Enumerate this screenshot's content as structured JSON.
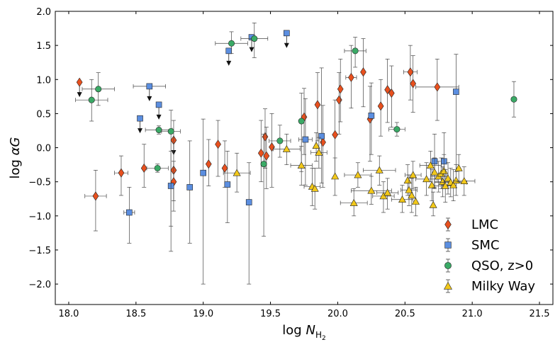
{
  "chart_data": {
    "type": "scatter",
    "title": "",
    "xlabel": "log N_H2",
    "ylabel": "log αG",
    "xlim": [
      17.9,
      21.6
    ],
    "ylim": [
      -2.3,
      2.0
    ],
    "xticks": [
      18.0,
      18.5,
      19.0,
      19.5,
      20.0,
      20.5,
      21.0,
      21.5
    ],
    "xtick_labels": [
      "18.0",
      "18.5",
      "19.0",
      "19.5",
      "20.0",
      "20.5",
      "21.0",
      "21.5"
    ],
    "yticks": [
      -2.0,
      -1.5,
      -1.0,
      -0.5,
      0.0,
      0.5,
      1.0,
      1.5,
      2.0
    ],
    "ytick_labels": [
      "−2.0",
      "−1.5",
      "−1.0",
      "−0.5",
      "0.0",
      "0.5",
      "1.0",
      "1.5",
      "2.0"
    ],
    "legend_position": "bottom-right",
    "series": [
      {
        "name": "LMC",
        "marker": "diamond",
        "color": "#e8501e",
        "points": [
          {
            "x": 18.08,
            "y": 0.96,
            "ylo": 0.9,
            "yhi": 1.02,
            "upper": true
          },
          {
            "x": 18.2,
            "y": -0.71,
            "ylo": -1.22,
            "yhi": -0.33,
            "xerr": 0.08
          },
          {
            "x": 18.39,
            "y": -0.37,
            "ylo": -0.7,
            "yhi": -0.12,
            "xerr": 0.05
          },
          {
            "x": 18.56,
            "y": -0.3,
            "ylo": -0.58,
            "yhi": 0.05
          },
          {
            "x": 18.78,
            "y": 0.11,
            "ylo": 0.08,
            "yhi": 0.14,
            "upper": true
          },
          {
            "x": 18.78,
            "y": -0.33,
            "ylo": -0.93,
            "yhi": 0.4
          },
          {
            "x": 18.78,
            "y": -0.5,
            "ylo": -0.78,
            "yhi": -0.2
          },
          {
            "x": 19.04,
            "y": -0.24,
            "ylo": -0.56,
            "yhi": 0.12
          },
          {
            "x": 19.11,
            "y": 0.05,
            "ylo": -0.42,
            "yhi": 0.4
          },
          {
            "x": 19.16,
            "y": -0.3,
            "ylo": -0.58,
            "yhi": 0.1
          },
          {
            "x": 19.43,
            "y": -0.08,
            "ylo": -0.5,
            "yhi": 0.4
          },
          {
            "x": 19.46,
            "y": 0.16,
            "ylo": -0.3,
            "yhi": 0.57
          },
          {
            "x": 19.47,
            "y": -0.12,
            "ylo": -0.6,
            "yhi": 0.3
          },
          {
            "x": 19.51,
            "y": 0.01,
            "ylo": -0.58,
            "yhi": 0.5
          },
          {
            "x": 19.75,
            "y": 0.45,
            "ylo": -0.1,
            "yhi": 0.87
          },
          {
            "x": 19.85,
            "y": 0.63,
            "ylo": 0.1,
            "yhi": 1.1
          },
          {
            "x": 19.89,
            "y": 0.08,
            "ylo": -0.58,
            "yhi": 0.62
          },
          {
            "x": 19.98,
            "y": 0.19,
            "ylo": -0.42,
            "yhi": 0.7
          },
          {
            "x": 20.01,
            "y": 0.7,
            "ylo": 0.2,
            "yhi": 1.1
          },
          {
            "x": 20.02,
            "y": 0.86,
            "ylo": 0.38,
            "yhi": 1.3
          },
          {
            "x": 20.1,
            "y": 1.03,
            "ylo": 0.58,
            "yhi": 1.5,
            "xerr": 0.04
          },
          {
            "x": 20.19,
            "y": 1.11,
            "ylo": 0.6,
            "yhi": 1.6
          },
          {
            "x": 20.24,
            "y": 0.42,
            "ylo": -0.2,
            "yhi": 0.9
          },
          {
            "x": 20.32,
            "y": 0.61,
            "ylo": 0.17,
            "yhi": 1.0
          },
          {
            "x": 20.37,
            "y": 0.85,
            "ylo": 0.37,
            "yhi": 1.3
          },
          {
            "x": 20.4,
            "y": 0.8,
            "ylo": 0.3,
            "yhi": 1.2
          },
          {
            "x": 20.54,
            "y": 1.11,
            "ylo": 0.7,
            "yhi": 1.5,
            "xerr": 0.05
          },
          {
            "x": 20.56,
            "y": 0.94,
            "ylo": 0.52,
            "yhi": 1.35
          },
          {
            "x": 20.74,
            "y": 0.89,
            "ylo": 0.4,
            "yhi": 1.3,
            "xerr": 0.16
          }
        ]
      },
      {
        "name": "SMC",
        "marker": "square",
        "color": "#5b8ee0",
        "points": [
          {
            "x": 18.45,
            "y": -0.95,
            "ylo": -1.4,
            "yhi": -0.58,
            "xerr": 0.04
          },
          {
            "x": 18.53,
            "y": 0.43,
            "ylo": 0.38,
            "yhi": 0.48,
            "upper": true
          },
          {
            "x": 18.6,
            "y": 0.9,
            "ylo": 0.85,
            "yhi": 0.95,
            "upper": true,
            "xerr": 0.12
          },
          {
            "x": 18.67,
            "y": 0.63,
            "ylo": 0.58,
            "yhi": 0.68,
            "upper": true
          },
          {
            "x": 18.76,
            "y": -0.56,
            "ylo": -1.15,
            "yhi": -0.05
          },
          {
            "x": 18.9,
            "y": -0.58,
            "ylo": -1.4,
            "yhi": 0.1
          },
          {
            "x": 19.0,
            "y": -0.37,
            "ylo": -2.0,
            "yhi": 0.42
          },
          {
            "x": 19.18,
            "y": -0.54,
            "ylo": -1.1,
            "yhi": -0.05
          },
          {
            "x": 19.19,
            "y": 1.42,
            "ylo": 1.38,
            "yhi": 1.46,
            "upper": true
          },
          {
            "x": 19.34,
            "y": -0.8,
            "ylo": -2.0,
            "yhi": -0.22
          },
          {
            "x": 19.36,
            "y": 1.62,
            "ylo": 1.58,
            "yhi": 1.66,
            "upper": true
          },
          {
            "x": 19.62,
            "y": 1.68,
            "ylo": 1.64,
            "yhi": 1.72,
            "upper": true
          },
          {
            "x": 19.76,
            "y": 0.12,
            "ylo": -0.55,
            "yhi": 0.72,
            "xerr": 0.05
          },
          {
            "x": 19.88,
            "y": 0.17,
            "ylo": -0.52,
            "yhi": 1.17
          },
          {
            "x": 20.25,
            "y": 0.47,
            "ylo": -0.1,
            "yhi": 0.95
          },
          {
            "x": 20.72,
            "y": -0.2,
            "ylo": -0.6,
            "yhi": 0.2
          },
          {
            "x": 20.79,
            "y": -0.2,
            "ylo": -0.58,
            "yhi": 0.22
          },
          {
            "x": 20.88,
            "y": 0.82,
            "ylo": -0.35,
            "yhi": 1.37
          }
        ]
      },
      {
        "name": "QSO, z>0",
        "marker": "circle",
        "color": "#3aaa66",
        "points": [
          {
            "x": 18.17,
            "y": 0.7,
            "ylo": 0.39,
            "yhi": 1.0,
            "xerr": 0.12
          },
          {
            "x": 18.22,
            "y": 0.86,
            "ylo": 0.62,
            "yhi": 1.1,
            "xerr": 0.12
          },
          {
            "x": 18.66,
            "y": -0.3,
            "ylo": -0.36,
            "yhi": -0.24,
            "xerr": 0.08
          },
          {
            "x": 18.67,
            "y": 0.26,
            "ylo": 0.2,
            "yhi": 0.32,
            "xerr": 0.1
          },
          {
            "x": 18.76,
            "y": 0.24,
            "ylo": -1.52,
            "yhi": 0.55,
            "xerr": 0.07
          },
          {
            "x": 19.21,
            "y": 1.53,
            "ylo": 1.38,
            "yhi": 1.7,
            "xerr": 0.12
          },
          {
            "x": 19.38,
            "y": 1.6,
            "ylo": 1.32,
            "yhi": 1.83,
            "xerr": 0.1
          },
          {
            "x": 19.45,
            "y": -0.24,
            "ylo": -1.3,
            "yhi": 0.2
          },
          {
            "x": 19.57,
            "y": 0.1,
            "ylo": -0.14,
            "yhi": 0.33,
            "xerr": 0.08
          },
          {
            "x": 19.73,
            "y": 0.39,
            "ylo": -0.35,
            "yhi": 0.8
          },
          {
            "x": 20.13,
            "y": 1.42,
            "ylo": 1.18,
            "yhi": 1.62,
            "xerr": 0.08
          },
          {
            "x": 20.44,
            "y": 0.27,
            "ylo": 0.17,
            "yhi": 0.37,
            "xerr": 0.06
          },
          {
            "x": 21.31,
            "y": 0.71,
            "ylo": 0.45,
            "yhi": 0.97
          }
        ]
      },
      {
        "name": "Milky Way",
        "marker": "triangle",
        "color": "#f2c81a",
        "points": [
          {
            "x": 19.25,
            "y": -0.37,
            "ylo": -0.65,
            "yhi": -0.08,
            "xerr": 0.1
          },
          {
            "x": 19.62,
            "y": -0.02,
            "ylo": -0.25,
            "yhi": 0.2,
            "xerr": 0.1
          },
          {
            "x": 19.73,
            "y": -0.26,
            "ylo": -0.55,
            "yhi": 0.02,
            "xerr": 0.08
          },
          {
            "x": 19.81,
            "y": -0.57,
            "ylo": -0.85,
            "yhi": -0.3,
            "xerr": 0.06
          },
          {
            "x": 19.83,
            "y": -0.6,
            "ylo": -0.9,
            "yhi": -0.3
          },
          {
            "x": 19.84,
            "y": 0.03,
            "ylo": -0.2,
            "yhi": 0.22
          },
          {
            "x": 19.86,
            "y": -0.07,
            "ylo": -0.3,
            "yhi": 0.15,
            "xerr": 0.06
          },
          {
            "x": 19.98,
            "y": -0.42,
            "ylo": -0.7,
            "yhi": -0.15
          },
          {
            "x": 20.12,
            "y": -0.81,
            "ylo": -1.0,
            "yhi": -0.6,
            "xerr": 0.1
          },
          {
            "x": 20.15,
            "y": -0.4,
            "ylo": -0.58,
            "yhi": -0.22,
            "xerr": 0.1
          },
          {
            "x": 20.25,
            "y": -0.63,
            "ylo": -0.83,
            "yhi": -0.42,
            "xerr": 0.15
          },
          {
            "x": 20.31,
            "y": -0.33,
            "ylo": -0.55,
            "yhi": -0.12,
            "xerr": 0.12
          },
          {
            "x": 20.34,
            "y": -0.71,
            "ylo": -0.95,
            "yhi": -0.5,
            "xerr": 0.08
          },
          {
            "x": 20.37,
            "y": -0.66,
            "ylo": -0.9,
            "yhi": -0.45,
            "xerr": 0.08
          },
          {
            "x": 20.48,
            "y": -0.76,
            "ylo": -0.95,
            "yhi": -0.55,
            "xerr": 0.08
          },
          {
            "x": 20.52,
            "y": -0.48,
            "ylo": -0.7,
            "yhi": -0.25
          },
          {
            "x": 20.53,
            "y": -0.62,
            "ylo": -0.85,
            "yhi": -0.4,
            "xerr": 0.06
          },
          {
            "x": 20.55,
            "y": -0.7,
            "ylo": -0.95,
            "yhi": -0.45
          },
          {
            "x": 20.56,
            "y": -0.4,
            "ylo": -0.6,
            "yhi": -0.2,
            "xerr": 0.06
          },
          {
            "x": 20.58,
            "y": -0.79,
            "ylo": -1.0,
            "yhi": -0.58
          },
          {
            "x": 20.66,
            "y": -0.46,
            "ylo": -0.7,
            "yhi": -0.22,
            "xerr": 0.08
          },
          {
            "x": 20.69,
            "y": -0.26,
            "ylo": -0.5,
            "yhi": -0.05,
            "xerr": 0.08
          },
          {
            "x": 20.7,
            "y": -0.55,
            "ylo": -0.78,
            "yhi": -0.32
          },
          {
            "x": 20.71,
            "y": -0.84,
            "ylo": -1.0,
            "yhi": -0.65
          },
          {
            "x": 20.72,
            "y": -0.36,
            "ylo": -0.58,
            "yhi": -0.15
          },
          {
            "x": 20.75,
            "y": -0.42,
            "ylo": -0.65,
            "yhi": -0.2,
            "xerr": 0.06
          },
          {
            "x": 20.77,
            "y": -0.38,
            "ylo": -0.6,
            "yhi": -0.15
          },
          {
            "x": 20.78,
            "y": -0.5,
            "ylo": -0.72,
            "yhi": -0.28,
            "xerr": 0.06
          },
          {
            "x": 20.79,
            "y": -0.34,
            "ylo": -0.55,
            "yhi": -0.1
          },
          {
            "x": 20.8,
            "y": -0.56,
            "ylo": -0.8,
            "yhi": -0.32,
            "xerr": 0.08
          },
          {
            "x": 20.82,
            "y": -0.45,
            "ylo": -0.68,
            "yhi": -0.22
          },
          {
            "x": 20.84,
            "y": -0.51,
            "ylo": -0.72,
            "yhi": -0.3,
            "xerr": 0.12
          },
          {
            "x": 20.86,
            "y": -0.55,
            "ylo": -0.78,
            "yhi": -0.32
          },
          {
            "x": 20.88,
            "y": -0.48,
            "ylo": -0.7,
            "yhi": -0.25
          },
          {
            "x": 20.9,
            "y": -0.3,
            "ylo": -0.5,
            "yhi": -0.1
          },
          {
            "x": 20.94,
            "y": -0.49,
            "ylo": -0.7,
            "yhi": -0.28,
            "xerr": 0.08
          }
        ]
      }
    ]
  }
}
